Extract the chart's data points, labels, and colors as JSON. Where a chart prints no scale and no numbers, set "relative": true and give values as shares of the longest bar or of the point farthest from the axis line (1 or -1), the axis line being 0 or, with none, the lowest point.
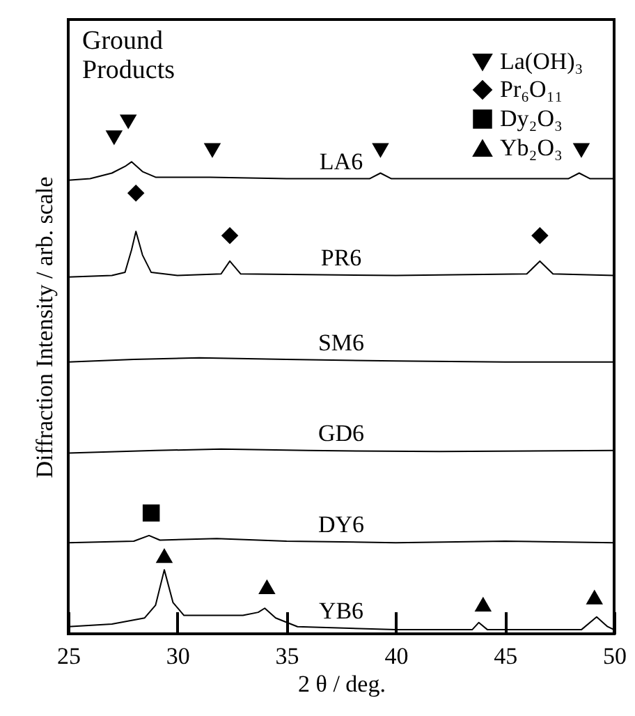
{
  "chart_data": {
    "type": "line",
    "relative": true,
    "xlabel": "2 θ / deg.",
    "ylabel": "Diffraction Intensity / arb. scale",
    "xlim": [
      25,
      50
    ],
    "xticks": [
      25,
      30,
      35,
      40,
      45,
      50
    ],
    "legend": "top right",
    "annotations": [
      "Ground Products"
    ],
    "series": [
      {
        "name": "LA6",
        "color": "#000000",
        "x": [
          25,
          26,
          27,
          27.6,
          27.9,
          28.4,
          29,
          31.5,
          35,
          38.8,
          39.3,
          39.8,
          44,
          47.9,
          48.4,
          48.9,
          50
        ],
        "values": [
          0.886,
          0.889,
          0.9,
          0.913,
          0.922,
          0.903,
          0.892,
          0.892,
          0.889,
          0.889,
          0.9,
          0.889,
          0.889,
          0.889,
          0.9,
          0.889,
          0.889
        ]
      },
      {
        "name": "PR6",
        "color": "#000000",
        "x": [
          25,
          27,
          27.6,
          27.9,
          28.1,
          28.4,
          28.8,
          30,
          32,
          32.4,
          32.9,
          40,
          46,
          46.6,
          47.2,
          50
        ],
        "values": [
          0.697,
          0.7,
          0.706,
          0.75,
          0.786,
          0.74,
          0.706,
          0.7,
          0.703,
          0.728,
          0.703,
          0.7,
          0.703,
          0.728,
          0.703,
          0.7
        ]
      },
      {
        "name": "SM6",
        "color": "#000000",
        "x": [
          25,
          28,
          31,
          35,
          40,
          45,
          50
        ],
        "values": [
          0.531,
          0.536,
          0.539,
          0.536,
          0.533,
          0.531,
          0.531
        ]
      },
      {
        "name": "GD6",
        "color": "#000000",
        "x": [
          25,
          29,
          32,
          36,
          42,
          50
        ],
        "values": [
          0.353,
          0.358,
          0.361,
          0.358,
          0.356,
          0.358
        ]
      },
      {
        "name": "DY6",
        "color": "#000000",
        "x": [
          25,
          28,
          28.7,
          29.2,
          31.8,
          35,
          40,
          45,
          50
        ],
        "values": [
          0.178,
          0.181,
          0.192,
          0.183,
          0.186,
          0.181,
          0.178,
          0.181,
          0.178
        ]
      },
      {
        "name": "YB6",
        "color": "#000000",
        "x": [
          25,
          27,
          28.5,
          29,
          29.4,
          29.8,
          30.3,
          31,
          33,
          33.7,
          34,
          34.5,
          35.5,
          40,
          43.5,
          43.8,
          44.2,
          48.5,
          49.2,
          49.7,
          50
        ],
        "values": [
          0.014,
          0.019,
          0.031,
          0.056,
          0.125,
          0.061,
          0.036,
          0.036,
          0.036,
          0.042,
          0.05,
          0.031,
          0.014,
          0.008,
          0.008,
          0.022,
          0.008,
          0.008,
          0.033,
          0.014,
          0.008
        ]
      },
      {
        "name": "La(OH)₃",
        "type": "scatter",
        "marker": "triangle-down",
        "color": "#000000",
        "x": [
          27.1,
          27.75,
          31.6,
          39.3,
          48.5
        ],
        "values": [
          0.969,
          1,
          0.944,
          0.944,
          0.944
        ]
      },
      {
        "name": "Pr₆O₁₁",
        "type": "scatter",
        "marker": "diamond",
        "color": "#000000",
        "x": [
          28.1,
          32.4,
          46.6
        ],
        "values": [
          0.861,
          0.778,
          0.778
        ]
      },
      {
        "name": "Dy₂O₃",
        "type": "scatter",
        "marker": "square",
        "color": "#000000",
        "x": [
          28.8
        ],
        "values": [
          0.236
        ]
      },
      {
        "name": "Yb₂O₃",
        "type": "scatter",
        "marker": "triangle",
        "color": "#000000",
        "x": [
          29.4,
          34.1,
          44,
          49.1
        ],
        "values": [
          0.153,
          0.092,
          0.058,
          0.072
        ]
      }
    ]
  }
}
